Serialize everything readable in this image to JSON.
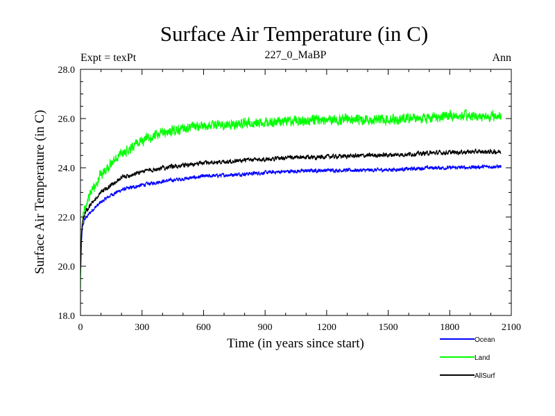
{
  "chart_data": {
    "type": "line",
    "title": "Surface Air Temperature (in C)",
    "subtitle_left": "Expt = texPt",
    "subtitle_center": "227_0_MaBP",
    "subtitle_right": "Ann",
    "xlabel": "Time (in years since start)",
    "ylabel": "Surface Air Temperature (in C)",
    "xlim": [
      0,
      2100
    ],
    "ylim": [
      18.0,
      28.0
    ],
    "xticks": [
      0,
      300,
      600,
      900,
      1200,
      1500,
      1800,
      2100
    ],
    "xtick_labels": [
      "0",
      "300",
      "600",
      "900",
      "1200",
      "1500",
      "1800",
      "2100"
    ],
    "yticks": [
      18.0,
      20.0,
      22.0,
      24.0,
      26.0,
      28.0
    ],
    "ytick_labels": [
      "18.0",
      "20.0",
      "22.0",
      "24.0",
      "26.0",
      "28.0"
    ],
    "grid": false,
    "legend_position": "bottom-right",
    "series": [
      {
        "name": "Ocean",
        "color": "#0000ff",
        "noise": 0.06,
        "x": [
          0,
          5,
          10,
          20,
          40,
          60,
          100,
          150,
          200,
          300,
          400,
          500,
          600,
          700,
          800,
          900,
          1000,
          1200,
          1400,
          1500,
          1600,
          1700,
          1800,
          1900,
          2000,
          2050
        ],
        "y": [
          19.6,
          21.0,
          21.6,
          21.9,
          22.1,
          22.3,
          22.6,
          22.9,
          23.1,
          23.3,
          23.45,
          23.55,
          23.65,
          23.7,
          23.75,
          23.8,
          23.85,
          23.9,
          23.9,
          23.92,
          23.95,
          24.0,
          24.0,
          24.02,
          24.05,
          24.05
        ]
      },
      {
        "name": "Land",
        "color": "#00ff00",
        "noise": 0.16,
        "x": [
          0,
          5,
          10,
          20,
          40,
          60,
          100,
          150,
          200,
          300,
          400,
          500,
          600,
          700,
          800,
          900,
          1000,
          1200,
          1400,
          1500,
          1600,
          1700,
          1800,
          1900,
          2000,
          2050
        ],
        "y": [
          19.1,
          21.2,
          21.9,
          22.4,
          22.8,
          23.1,
          23.7,
          24.2,
          24.6,
          25.1,
          25.4,
          25.6,
          25.7,
          25.75,
          25.8,
          25.85,
          25.9,
          25.95,
          25.97,
          25.98,
          26.0,
          26.05,
          26.1,
          26.1,
          26.1,
          26.1
        ]
      },
      {
        "name": "AllSurf",
        "color": "#000000",
        "noise": 0.07,
        "x": [
          0,
          5,
          10,
          20,
          40,
          60,
          100,
          150,
          200,
          300,
          400,
          500,
          600,
          700,
          800,
          900,
          1000,
          1200,
          1400,
          1500,
          1600,
          1700,
          1800,
          1900,
          2000,
          2050
        ],
        "y": [
          19.7,
          21.3,
          21.8,
          22.1,
          22.4,
          22.6,
          23.0,
          23.3,
          23.6,
          23.85,
          24.0,
          24.1,
          24.2,
          24.25,
          24.3,
          24.35,
          24.4,
          24.45,
          24.5,
          24.52,
          24.55,
          24.6,
          24.62,
          24.65,
          24.65,
          24.65
        ]
      }
    ]
  }
}
